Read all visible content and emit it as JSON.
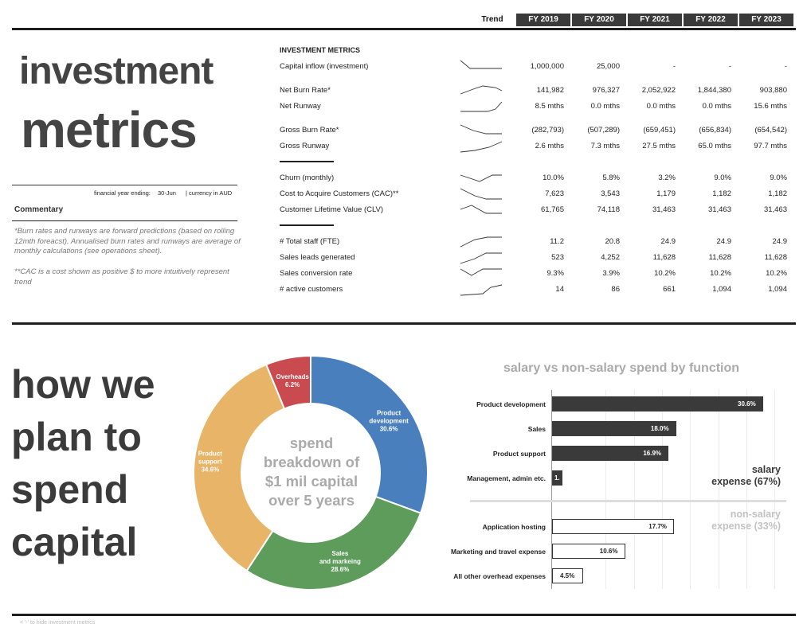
{
  "header": {
    "trend_label": "Trend",
    "years": [
      "FY 2019",
      "FY 2020",
      "FY 2021",
      "FY 2022",
      "FY 2023"
    ]
  },
  "left_panel": {
    "title_line1": "investment",
    "title_line2": "metrics",
    "fy_label": "financial year ending:",
    "fy_value": "30-Jun",
    "currency": "| currency in AUD",
    "commentary_heading": "Commentary",
    "note1": "*Burn rates and runways are forward predictions (based on rolling 12mth foreacst). Annualised burn rates and runways are average of monthly calculations (see operations sheet).",
    "note2": "**CAC is a cost shown as positive $ to more intuitively represent trend"
  },
  "metrics": {
    "section_heading": "INVESTMENT METRICS",
    "rows": [
      {
        "label": "Capital inflow (investment)",
        "values": [
          "1,000,000",
          "25,000",
          "-",
          "-",
          "-"
        ]
      },
      {
        "label": "Net Burn Rate*",
        "values": [
          "141,982",
          "976,327",
          "2,052,922",
          "1,844,380",
          "903,880"
        ]
      },
      {
        "label": "Net Runway",
        "values": [
          "8.5 mths",
          "0.0 mths",
          "0.0 mths",
          "0.0 mths",
          "15.6 mths"
        ]
      },
      {
        "label": "Gross Burn Rate*",
        "values": [
          "(282,793)",
          "(507,289)",
          "(659,451)",
          "(656,834)",
          "(654,542)"
        ]
      },
      {
        "label": "Gross Runway",
        "values": [
          "2.6 mths",
          "7.3 mths",
          "27.5 mths",
          "65.0 mths",
          "97.7 mths"
        ]
      },
      {
        "label": "Churn (monthly)",
        "values": [
          "10.0%",
          "5.8%",
          "3.2%",
          "9.0%",
          "9.0%"
        ]
      },
      {
        "label": "Cost to Acquire Customers (CAC)**",
        "values": [
          "7,623",
          "3,543",
          "1,179",
          "1,182",
          "1,182"
        ]
      },
      {
        "label": "Customer Lifetime Value (CLV)",
        "values": [
          "61,765",
          "74,118",
          "31,463",
          "31,463",
          "31,463"
        ]
      },
      {
        "label": "# Total staff (FTE)",
        "values": [
          "11.2",
          "20.8",
          "24.9",
          "24.9",
          "24.9"
        ]
      },
      {
        "label": "Sales leads generated",
        "values": [
          "523",
          "4,252",
          "11,628",
          "11,628",
          "11,628"
        ]
      },
      {
        "label": "Sales conversion rate",
        "values": [
          "9.3%",
          "3.9%",
          "10.2%",
          "10.2%",
          "10.2%"
        ]
      },
      {
        "label": "# active customers",
        "values": [
          "14",
          "86",
          "661",
          "1,094",
          "1,094"
        ]
      }
    ]
  },
  "spend_section": {
    "title_lines": [
      "how we",
      "plan to",
      "spend",
      "capital"
    ],
    "donut_center": [
      "spend",
      "breakdown of",
      "$1 mil capital",
      "over 5 years"
    ],
    "bar_title": "salary vs non-salary spend by function",
    "salary_group": [
      "salary",
      "expense (67%)"
    ],
    "nonsalary_group": [
      "non-salary",
      "expense (33%)"
    ],
    "footer": "<  '-' to hide investment metrics"
  },
  "chart_data": [
    {
      "type": "pie",
      "title": "",
      "slices": [
        {
          "label": "Product development",
          "value": 30.6,
          "color": "#4a7fbd"
        },
        {
          "label": "Sales and markeing",
          "value": 28.6,
          "color": "#5e9c5c"
        },
        {
          "label": "Product support",
          "value": 34.6,
          "color": "#e8b468"
        },
        {
          "label": "Overheads",
          "value": 6.2,
          "color": "#c94a4f"
        }
      ],
      "hole": true
    },
    {
      "type": "bar",
      "orientation": "horizontal",
      "title": "salary vs non-salary spend by function",
      "categories": [
        "Product development",
        "Sales",
        "Product support",
        "Management, admin etc.",
        "Application hosting",
        "Marketing and travel expense",
        "All other overhead expenses"
      ],
      "values": [
        30.6,
        18.0,
        16.9,
        1.5,
        17.7,
        10.6,
        4.5
      ],
      "labels": [
        "30.6%",
        "18.0%",
        "16.9%",
        "1.",
        "17.7%",
        "10.6%",
        "4.5%"
      ],
      "groups": [
        "salary",
        "salary",
        "salary",
        "salary",
        "non-salary",
        "non-salary",
        "non-salary"
      ],
      "colors": {
        "salary": "#3a3a3a",
        "non-salary": "#ffffff"
      },
      "xlim": [
        0,
        35
      ],
      "grid": true
    }
  ]
}
